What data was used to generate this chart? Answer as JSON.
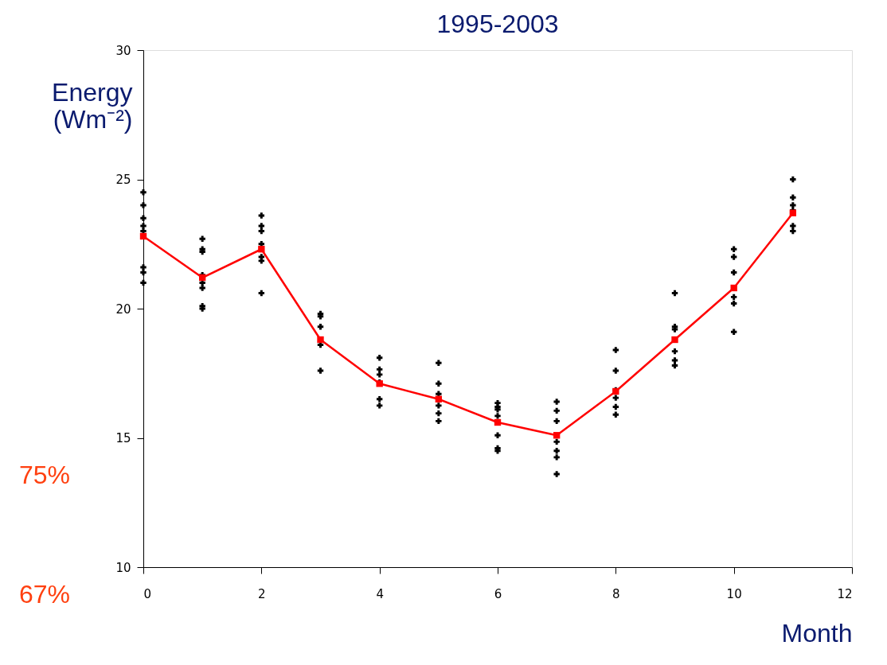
{
  "chart_data": {
    "type": "scatter",
    "title": "1995-2003",
    "xlabel": "Month",
    "ylabel": "Energy (Wm⁻²)",
    "xlim": [
      0,
      12
    ],
    "xticks": [
      0,
      2,
      4,
      6,
      8,
      10,
      12
    ],
    "ylim": [
      10,
      30
    ],
    "yticks": [
      10,
      15,
      20,
      25,
      30
    ],
    "annotations": [
      "75%",
      "67%"
    ],
    "series": [
      {
        "color": "#000000",
        "marker": "cross",
        "x": [
          0,
          0,
          0,
          0,
          0,
          0,
          0,
          0,
          1,
          1,
          1,
          1,
          1,
          1,
          1,
          1,
          2,
          2,
          2,
          2,
          2,
          2,
          2,
          3,
          3,
          3,
          3,
          3,
          4,
          4,
          4,
          4,
          4,
          4,
          5,
          5,
          5,
          5,
          5,
          5,
          6,
          6,
          6,
          6,
          6,
          6,
          6,
          7,
          7,
          7,
          7,
          7,
          7,
          7,
          8,
          8,
          8,
          8,
          8,
          8,
          9,
          9,
          9,
          9,
          9,
          9,
          10,
          10,
          10,
          10,
          10,
          10,
          11,
          11,
          11,
          11,
          11,
          11
        ],
        "values": [
          24.5,
          24.0,
          23.5,
          23.2,
          23.0,
          21.6,
          21.4,
          21.0,
          22.7,
          22.3,
          22.2,
          21.3,
          21.0,
          20.8,
          20.1,
          20.0,
          23.6,
          23.2,
          23.0,
          22.5,
          22.0,
          21.85,
          20.6,
          19.8,
          19.7,
          19.3,
          18.6,
          17.6,
          18.1,
          17.65,
          17.45,
          17.15,
          16.5,
          16.25,
          17.9,
          17.1,
          16.7,
          16.25,
          15.95,
          15.65,
          16.35,
          16.2,
          16.1,
          15.85,
          15.1,
          14.6,
          14.5,
          16.4,
          16.05,
          15.65,
          14.85,
          14.5,
          14.25,
          13.6,
          18.4,
          17.6,
          16.85,
          16.55,
          16.2,
          15.9,
          20.6,
          19.3,
          19.2,
          18.35,
          18.0,
          17.8,
          22.3,
          22.0,
          21.4,
          20.45,
          20.2,
          19.1,
          25.0,
          24.3,
          24.0,
          23.8,
          23.2,
          23.0
        ]
      },
      {
        "type": "line",
        "color": "#ff0000",
        "marker": "square",
        "x": [
          0,
          1,
          2,
          3,
          4,
          5,
          6,
          7,
          8,
          9,
          10,
          11
        ],
        "values": [
          22.8,
          21.2,
          22.3,
          18.8,
          17.1,
          16.5,
          15.6,
          15.1,
          16.8,
          18.8,
          20.8,
          23.7
        ]
      }
    ]
  }
}
